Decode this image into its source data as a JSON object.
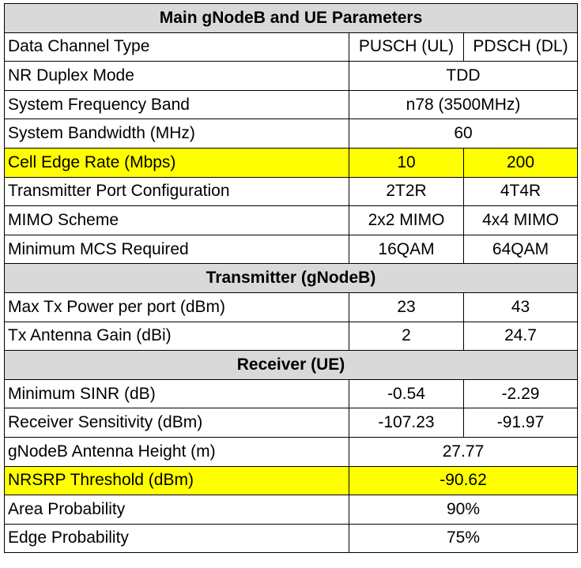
{
  "sections": [
    {
      "title": "Main gNodeB and UE Parameters",
      "rows": [
        {
          "cells": [
            "Data Channel Type",
            "PUSCH (UL)",
            "PDSCH (DL)"
          ]
        },
        {
          "cells": [
            "NR Duplex Mode",
            "TDD"
          ]
        },
        {
          "cells": [
            "System Frequency Band",
            "n78 (3500MHz)"
          ]
        },
        {
          "cells": [
            "System Bandwidth (MHz)",
            "60"
          ]
        },
        {
          "cells": [
            "Cell Edge Rate (Mbps)",
            "10",
            "200"
          ],
          "highlight": true
        },
        {
          "cells": [
            "Transmitter Port Configuration",
            "2T2R",
            "4T4R"
          ]
        },
        {
          "cells": [
            "MIMO Scheme",
            "2x2 MIMO",
            "4x4 MIMO"
          ]
        },
        {
          "cells": [
            "Minimum MCS Required",
            "16QAM",
            "64QAM"
          ]
        }
      ]
    },
    {
      "title": "Transmitter (gNodeB)",
      "rows": [
        {
          "cells": [
            "Max Tx Power per port (dBm)",
            "23",
            "43"
          ]
        },
        {
          "cells": [
            "Tx Antenna Gain (dBi)",
            "2",
            "24.7"
          ]
        }
      ]
    },
    {
      "title": "Receiver (UE)",
      "rows": [
        {
          "cells": [
            "Minimum SINR (dB)",
            "-0.54",
            "-2.29"
          ]
        },
        {
          "cells": [
            "Receiver Sensitivity (dBm)",
            "-107.23",
            "-91.97"
          ]
        },
        {
          "cells": [
            "gNodeB Antenna Height (m)",
            "27.77"
          ]
        },
        {
          "cells": [
            "NRSRP Threshold (dBm)",
            "-90.62"
          ],
          "highlight": true
        },
        {
          "cells": [
            "Area Probability",
            "90%"
          ]
        },
        {
          "cells": [
            "Edge Probability",
            "75%"
          ]
        }
      ]
    }
  ]
}
